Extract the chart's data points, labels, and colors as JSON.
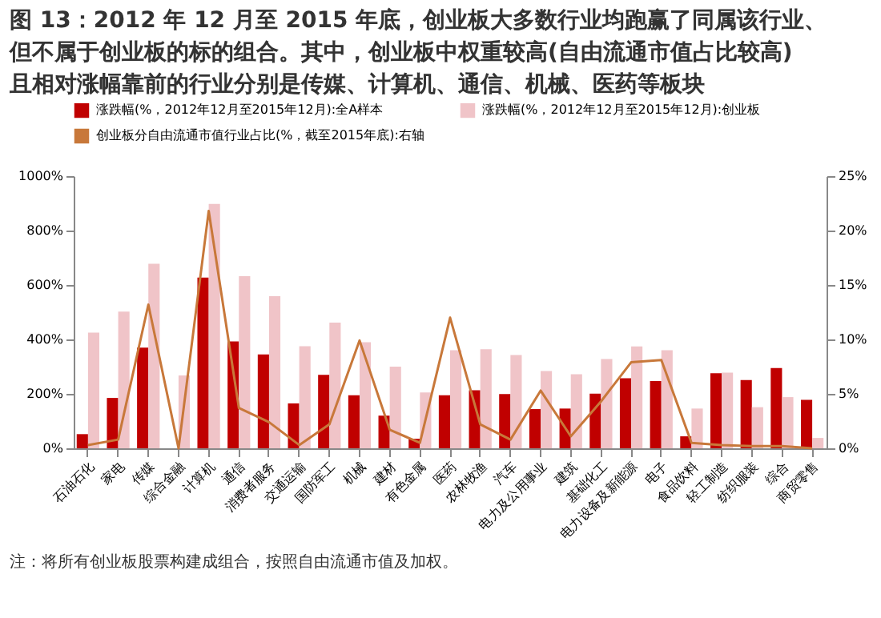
{
  "chart_data": {
    "type": "bar",
    "title": [
      "图 13：2012 年 12 月至 2015 年底，创业板大多数行业均跑赢了同属该行业、",
      "但不属于创业板的标的组合。其中，创业板中权重较高(自由流通市值占比较高)",
      "且相对涨幅靠前的行业分别是传媒、计算机、通信、机械、医药等板块"
    ],
    "categories": [
      "石油石化",
      "家电",
      "传媒",
      "综合金融",
      "计算机",
      "通信",
      "消费者服务",
      "交通运输",
      "国防军工",
      "机械",
      "建材",
      "有色金属",
      "医药",
      "农林牧渔",
      "汽车",
      "电力及公用事业",
      "建筑",
      "基础化工",
      "电力设备及新能源",
      "电子",
      "食品饮料",
      "轻工制造",
      "纺织服装",
      "综合",
      "商贸零售"
    ],
    "series": [
      {
        "name": "涨跌幅(%，2012年12月至2015年12月):全A样本",
        "color": "#c00000",
        "values": [
          52,
          185,
          370,
          0,
          627,
          393,
          345,
          165,
          270,
          195,
          120,
          35,
          195,
          213,
          199,
          144,
          146,
          201,
          257,
          247,
          44,
          276,
          251,
          295,
          178
        ]
      },
      {
        "name": "涨跌幅(%，2012年12月至2015年12月):创业板",
        "color": "#f0c4c8",
        "values": [
          425,
          502,
          678,
          268,
          898,
          632,
          559,
          375,
          462,
          390,
          300,
          205,
          360,
          364,
          343,
          284,
          272,
          328,
          374,
          360,
          146,
          278,
          151,
          188,
          38
        ]
      },
      {
        "name": "创业板分自由流通市值行业占比(%，截至2015年底):右轴",
        "type": "line",
        "axis": "y2",
        "color": "#c8783a",
        "values": [
          0.3,
          0.8,
          13.2,
          0,
          21.8,
          3.7,
          2.4,
          0.3,
          2.2,
          9.9,
          1.7,
          0.5,
          12.0,
          2.2,
          0.8,
          5.3,
          1.1,
          4.3,
          7.9,
          8.1,
          0.5,
          0.3,
          0.2,
          0.2,
          0
        ]
      }
    ],
    "ylim": [
      0,
      1000
    ],
    "yticks": [
      {
        "value": 0,
        "label": "0%"
      },
      {
        "value": 200,
        "label": "200%"
      },
      {
        "value": 400,
        "label": "400%"
      },
      {
        "value": 600,
        "label": "600%"
      },
      {
        "value": 800,
        "label": "800%"
      },
      {
        "value": 1000,
        "label": "1000%"
      }
    ],
    "y2lim": [
      0,
      25
    ],
    "y2ticks": [
      {
        "value": 0,
        "label": "0%"
      },
      {
        "value": 5,
        "label": "5%"
      },
      {
        "value": 10,
        "label": "10%"
      },
      {
        "value": 15,
        "label": "15%"
      },
      {
        "value": 20,
        "label": "20%"
      },
      {
        "value": 25,
        "label": "25%"
      }
    ],
    "legend": "top",
    "grid": false,
    "marker": "none",
    "line_style": "solid",
    "annotations": [
      "注：将所有创业板股票构建成组合，按照自由流通市值及加权。"
    ]
  }
}
